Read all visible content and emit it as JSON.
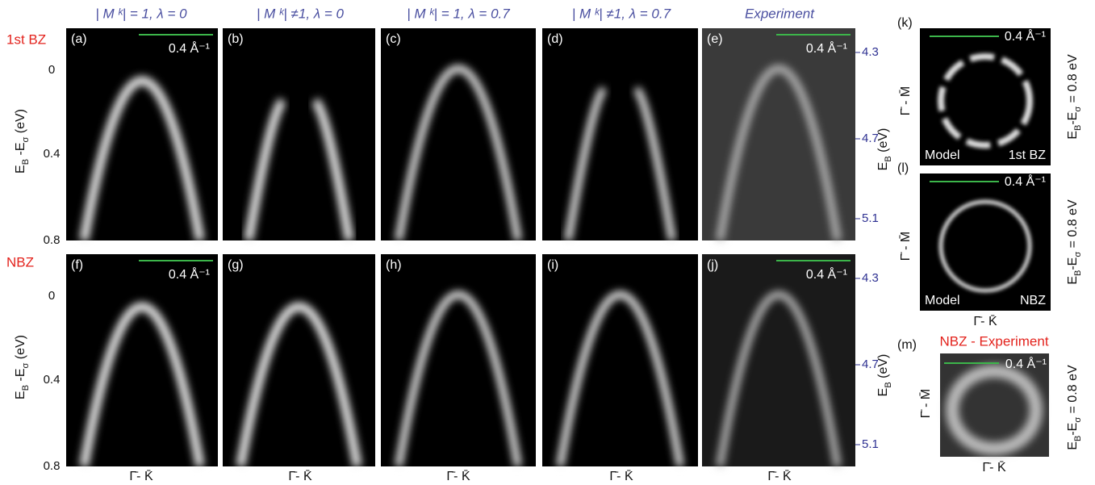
{
  "columns": [
    "| M ᵏ| = 1, λ = 0",
    "| M ᵏ| ≠1, λ = 0",
    "| M ᵏ| = 1, λ = 0.7",
    "| M ᵏ| ≠1, λ = 0.7",
    "Experiment"
  ],
  "rows": [
    "1st BZ",
    "NBZ"
  ],
  "panel_labels": [
    "(a)",
    "(b)",
    "(c)",
    "(d)",
    "(e)",
    "(f)",
    "(g)",
    "(h)",
    "(i)",
    "(j)"
  ],
  "scale_bar": "0.4 Å⁻¹",
  "left_axis": {
    "label": [
      "E",
      "B",
      " -E",
      "σ",
      " (eV)"
    ],
    "ticks": [
      "0",
      "0.4",
      "0.8"
    ]
  },
  "right_axis": {
    "label": [
      "E",
      "B",
      " (eV)"
    ],
    "ticks": [
      "4.3",
      "4.7",
      "5.1"
    ]
  },
  "x_label": "Γ̄- K̄",
  "side_panels": [
    {
      "label": "(k)",
      "left_text": "Model",
      "right_text": "1st BZ"
    },
    {
      "label": "(l)",
      "left_text": "Model",
      "right_text": "NBZ"
    },
    {
      "label": "(m)",
      "title": "NBZ - Experiment"
    }
  ],
  "side_y_label": "Γ̄ - M̄",
  "side_x_label": "Γ̄- K̄",
  "energy_label": [
    "E",
    "B",
    "-E",
    "σ",
    " = 0.8 eV"
  ]
}
